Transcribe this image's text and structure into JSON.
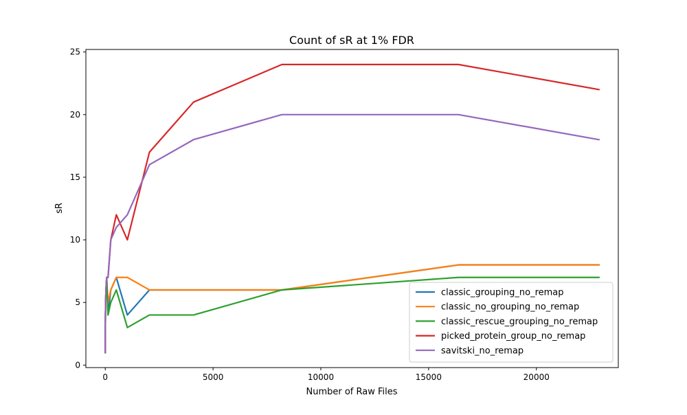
{
  "chart_data": {
    "type": "line",
    "title": "Count of sR at 1% FDR",
    "xlabel": "Number of Raw Files",
    "ylabel": "sR",
    "xlim": [
      -900,
      23800
    ],
    "ylim": [
      -0.2,
      25.2
    ],
    "xticks": [
      0,
      5000,
      10000,
      15000,
      20000
    ],
    "xtick_labels": [
      "0",
      "5000",
      "10000",
      "15000",
      "20000"
    ],
    "yticks": [
      0,
      5,
      10,
      15,
      20,
      25
    ],
    "ytick_labels": [
      "0",
      "5",
      "10",
      "15",
      "20",
      "25"
    ],
    "grid": false,
    "legend_position": "bottom-right",
    "x": [
      1,
      2,
      4,
      8,
      16,
      32,
      64,
      128,
      256,
      512,
      1024,
      2048,
      4096,
      8192,
      16384,
      22900
    ],
    "series": [
      {
        "name": "classic_grouping_no_remap",
        "color": "#1f77b4",
        "values": [
          1,
          2,
          3,
          4,
          5,
          6,
          7,
          4,
          6,
          7,
          4,
          6,
          6,
          6,
          8,
          8
        ]
      },
      {
        "name": "classic_no_grouping_no_remap",
        "color": "#ff7f0e",
        "values": [
          1,
          2,
          3,
          4,
          5,
          6,
          7,
          5,
          6,
          7,
          7,
          6,
          6,
          6,
          8,
          8
        ]
      },
      {
        "name": "classic_rescue_grouping_no_remap",
        "color": "#2ca02c",
        "values": [
          1,
          2,
          3,
          4,
          5,
          6,
          7,
          4,
          5,
          6,
          3,
          4,
          4,
          6,
          7,
          7
        ]
      },
      {
        "name": "picked_protein_group_no_remap",
        "color": "#d62728",
        "values": [
          1,
          2,
          3,
          4,
          5,
          6,
          7,
          7,
          10,
          12,
          10,
          17,
          21,
          24,
          24,
          22
        ]
      },
      {
        "name": "savitski_no_remap",
        "color": "#9467bd",
        "values": [
          1,
          2,
          3,
          4,
          5,
          6,
          7,
          7,
          10,
          11,
          12,
          16,
          18,
          20,
          20,
          18
        ]
      }
    ]
  }
}
